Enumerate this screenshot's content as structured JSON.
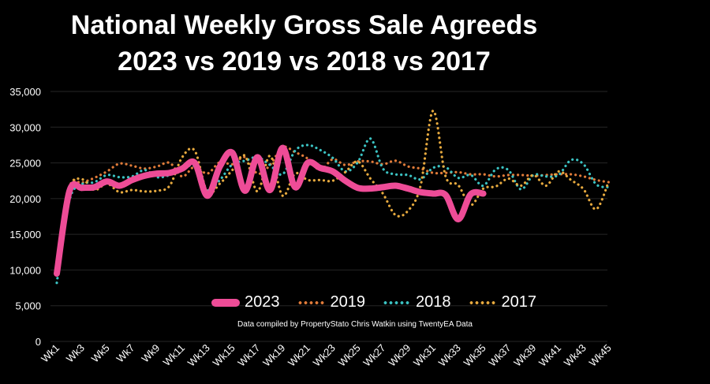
{
  "chart_data": {
    "type": "line",
    "title": "National Weekly Gross Sale Agreeds",
    "subtitle": "2023 vs 2019 vs 2018 vs 2017",
    "credit": "Data compiled by PropertyStato Chris Watkin using TwentyEA Data",
    "xlabel": "",
    "ylabel": "",
    "ylim": [
      0,
      35000
    ],
    "yticks": [
      "0",
      "5,000",
      "10,000",
      "15,000",
      "20,000",
      "25,000",
      "30,000",
      "35,000"
    ],
    "xticks": [
      "Wk1",
      "Wk3",
      "Wk5",
      "Wk7",
      "Wk9",
      "Wk11",
      "Wk13",
      "Wk15",
      "Wk17",
      "Wk19",
      "Wk21",
      "Wk23",
      "Wk25",
      "Wk27",
      "Wk29",
      "Wk31",
      "Wk33",
      "Wk35",
      "Wk37",
      "Wk39",
      "Wk41",
      "Wk43",
      "Wk45"
    ],
    "grid": true,
    "legend": "bottom",
    "series": [
      {
        "name": "2023",
        "color": "#EE4C97",
        "style": "solid",
        "values": [
          9500,
          21000,
          21500,
          21600,
          22400,
          21800,
          22600,
          23200,
          23500,
          23600,
          24200,
          25000,
          20400,
          24500,
          26400,
          21100,
          25800,
          21200,
          27100,
          21600,
          25000,
          24300,
          23800,
          22500,
          21500,
          21400,
          21600,
          21800,
          21400,
          20900,
          20700,
          20500,
          17100,
          20600,
          20700
        ]
      },
      {
        "name": "2019",
        "color": "#E07B39",
        "style": "dotted",
        "values": [
          9500,
          21500,
          22200,
          22900,
          23800,
          24900,
          24600,
          24200,
          24500,
          25000,
          23100,
          24500,
          23500,
          25100,
          24800,
          25800,
          23500,
          24700,
          27200,
          26500,
          25600,
          24000,
          25500,
          24700,
          25200,
          25200,
          24800,
          25300,
          24500,
          24200,
          23600,
          23600,
          23700,
          23400,
          23400,
          23100,
          23300,
          23300,
          23200,
          23300,
          23400,
          23400,
          23100,
          22600,
          22300
        ]
      },
      {
        "name": "2018",
        "color": "#3BC2C2",
        "style": "dotted",
        "values": [
          8200,
          19700,
          22000,
          22300,
          23300,
          23000,
          23100,
          24000,
          23000,
          23300,
          24100,
          24500,
          21200,
          22600,
          24800,
          25300,
          25800,
          24700,
          23400,
          26700,
          27500,
          26800,
          25700,
          23800,
          25100,
          28400,
          24200,
          23400,
          23300,
          22700,
          24300,
          24400,
          22900,
          23300,
          21800,
          24100,
          24000,
          21300,
          23300,
          23100,
          23300,
          25400,
          24800,
          22000,
          21600
        ]
      },
      {
        "name": "2017",
        "color": "#E6A93E",
        "style": "dotted",
        "values": [
          9400,
          21200,
          22700,
          21200,
          22100,
          20900,
          21200,
          21000,
          21100,
          21800,
          25800,
          26700,
          20900,
          22100,
          24000,
          26000,
          21000,
          26000,
          20400,
          23500,
          22600,
          22600,
          22500,
          23700,
          25200,
          22800,
          20700,
          17700,
          18300,
          21800,
          32300,
          23100,
          21900,
          19100,
          21400,
          21700,
          22800,
          21800,
          23300,
          21800,
          23800,
          22600,
          21300,
          18500,
          22400
        ]
      }
    ]
  }
}
